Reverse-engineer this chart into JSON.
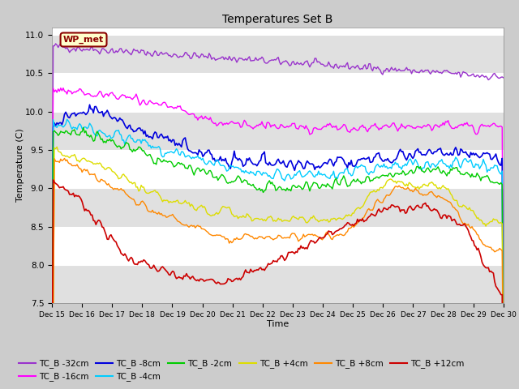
{
  "title": "Temperatures Set B",
  "xlabel": "Time",
  "ylabel": "Temperature (C)",
  "ylim": [
    7.5,
    11.1
  ],
  "xlim": [
    0,
    360
  ],
  "x_tick_labels": [
    "Dec 15",
    "Dec 16",
    "Dec 17",
    "Dec 18",
    "Dec 19",
    "Dec 20",
    "Dec 21",
    "Dec 22",
    "Dec 23",
    "Dec 24",
    "Dec 25",
    "Dec 26",
    "Dec 27",
    "Dec 28",
    "Dec 29",
    "Dec 30"
  ],
  "annotation_text": "WP_met",
  "annotation_bg": "#ffffcc",
  "annotation_border": "#8b0000",
  "series_colors": {
    "TC_B -32cm": "#9933cc",
    "TC_B -16cm": "#ff00ff",
    "TC_B -8cm": "#0000dd",
    "TC_B -4cm": "#00ccff",
    "TC_B -2cm": "#00cc00",
    "TC_B +4cm": "#dddd00",
    "TC_B +8cm": "#ff8800",
    "TC_B +12cm": "#cc0000"
  },
  "plot_bg": "#ffffff",
  "fig_bg": "#cccccc",
  "grid_color": "#cccccc",
  "band_color": "#e0e0e0"
}
